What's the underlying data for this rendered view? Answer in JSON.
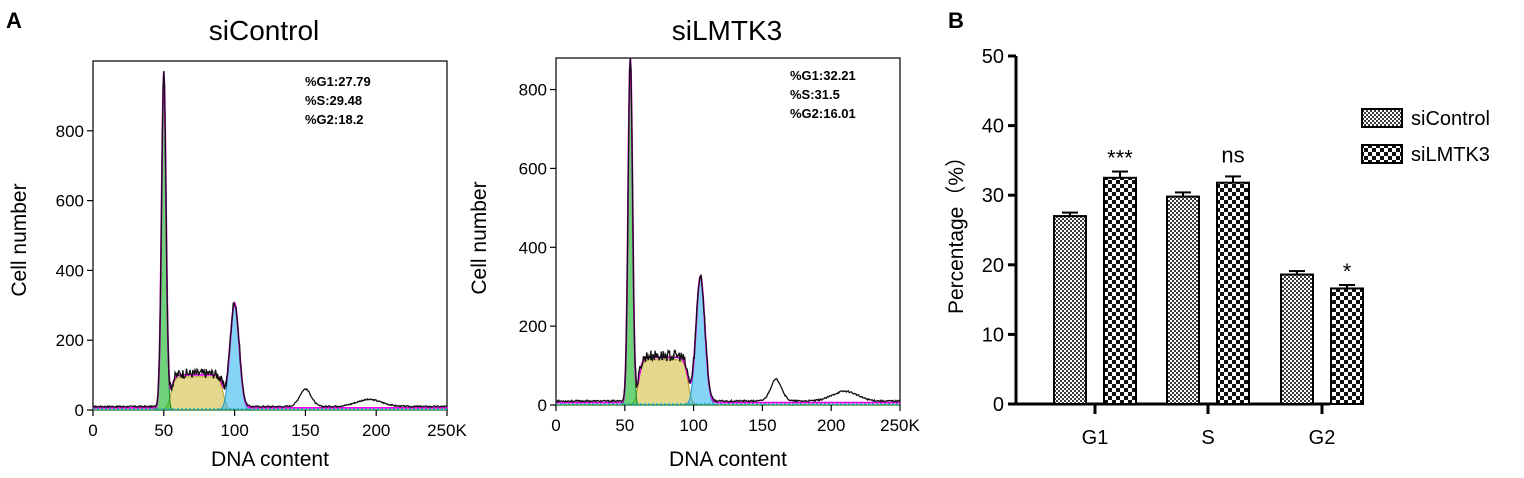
{
  "chart_data": [
    {
      "type": "histogram",
      "panel_label": "A",
      "title": "siControl",
      "xlabel": "DNA content",
      "ylabel": "Cell number",
      "x_ticks": [
        "0",
        "50",
        "100",
        "150",
        "200",
        "250K"
      ],
      "x_range": [
        0,
        250
      ],
      "y_ticks": [
        "0",
        "200",
        "400",
        "600",
        "800"
      ],
      "y_range": [
        0,
        1000
      ],
      "stats": [
        "%G1:27.79",
        "%S:29.48",
        "%G2:18.2"
      ],
      "g1_peak": {
        "x": 50,
        "y": 960
      },
      "g2_peak": {
        "x": 100,
        "y": 300
      },
      "s_plateau": {
        "from": 55,
        "to": 92,
        "y": 95
      },
      "small_peaks": [
        {
          "x": 150,
          "y": 50
        },
        {
          "x": 195,
          "y": 20
        }
      ],
      "fill_colors": {
        "g1": "#22bb33",
        "s": "#d8c860",
        "g2": "#33b8ee",
        "fit": "#ee00ee",
        "data": "#111111"
      }
    },
    {
      "type": "histogram",
      "title": "siLMTK3",
      "xlabel": "DNA content",
      "ylabel": "Cell number",
      "x_ticks": [
        "0",
        "50",
        "100",
        "150",
        "200",
        "250K"
      ],
      "x_range": [
        0,
        250
      ],
      "y_ticks": [
        "0",
        "200",
        "400",
        "600",
        "800"
      ],
      "y_range": [
        0,
        880
      ],
      "stats": [
        "%G1:32.21",
        "%S:31.5",
        "%G2:16.01"
      ],
      "g1_peak": {
        "x": 54,
        "y": 880
      },
      "g2_peak": {
        "x": 105,
        "y": 320
      },
      "s_plateau": {
        "from": 60,
        "to": 96,
        "y": 115
      },
      "small_peaks": [
        {
          "x": 160,
          "y": 55
        },
        {
          "x": 210,
          "y": 25
        }
      ],
      "fill_colors": {
        "g1": "#22bb33",
        "s": "#d8c860",
        "g2": "#33b8ee",
        "fit": "#ee00ee",
        "data": "#111111"
      }
    },
    {
      "type": "bar",
      "panel_label": "B",
      "categories": [
        "G1",
        "S",
        "G2"
      ],
      "series": [
        {
          "name": "siControl",
          "values": [
            27.0,
            29.8,
            18.6
          ],
          "errors": [
            0.5,
            0.6,
            0.5
          ]
        },
        {
          "name": "siLMTK3",
          "values": [
            32.5,
            31.8,
            16.6
          ],
          "errors": [
            0.9,
            0.9,
            0.5
          ]
        }
      ],
      "significance": [
        "***",
        "ns",
        "*"
      ],
      "ylabel": "Percentage（%）",
      "xlabel": "",
      "y_ticks": [
        "0",
        "10",
        "20",
        "30",
        "40",
        "50"
      ],
      "ylim": [
        0,
        50
      ],
      "legend_position": "right"
    }
  ]
}
